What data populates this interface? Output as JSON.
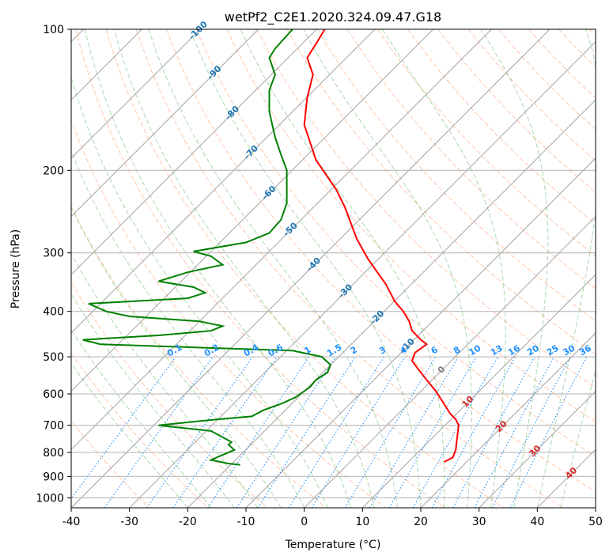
{
  "chart_data": {
    "type": "line",
    "title": "wetPf2_C2E1.2020.324.09.47.G18",
    "xlabel": "Temperature (°C)",
    "ylabel": "Pressure (hPa)",
    "xlim": [
      -40,
      50
    ],
    "ylim": [
      1050,
      100
    ],
    "y_scale": "log",
    "x_ticks": [
      -40,
      -30,
      -20,
      -10,
      0,
      10,
      20,
      30,
      40,
      50
    ],
    "y_ticks": [
      1000,
      900,
      800,
      700,
      600,
      500,
      400,
      300,
      200,
      100
    ],
    "grid": true,
    "series": [
      {
        "name": "",
        "role": "temperature",
        "color": "#ff0000",
        "points": [
          [
            24,
            838
          ],
          [
            25.5,
            820
          ],
          [
            26,
            790
          ],
          [
            26.2,
            750
          ],
          [
            26.5,
            700
          ],
          [
            26,
            680
          ],
          [
            25,
            660
          ],
          [
            24,
            630
          ],
          [
            22.5,
            590
          ],
          [
            21,
            560
          ],
          [
            19.5,
            530
          ],
          [
            18.5,
            510
          ],
          [
            19,
            490
          ],
          [
            21,
            470
          ],
          [
            20,
            460
          ],
          [
            18.5,
            440
          ],
          [
            18,
            420
          ],
          [
            17,
            400
          ],
          [
            15.5,
            380
          ],
          [
            14,
            350
          ],
          [
            11,
            310
          ],
          [
            9,
            280
          ],
          [
            7,
            240
          ],
          [
            5.5,
            220
          ],
          [
            2,
            190
          ],
          [
            0,
            160
          ],
          [
            0.5,
            140
          ],
          [
            1.5,
            125
          ],
          [
            0.5,
            115
          ],
          [
            2.5,
            105
          ],
          [
            3.5,
            100
          ]
        ]
      },
      {
        "name": "",
        "role": "dewpoint",
        "color": "#008000",
        "points": [
          [
            -11,
            850
          ],
          [
            -13,
            845
          ],
          [
            -16,
            830
          ],
          [
            -14,
            810
          ],
          [
            -12,
            790
          ],
          [
            -13,
            770
          ],
          [
            -12.5,
            760
          ],
          [
            -16,
            720
          ],
          [
            -25,
            700
          ],
          [
            -15,
            680
          ],
          [
            -9,
            670
          ],
          [
            -7,
            650
          ],
          [
            -4,
            630
          ],
          [
            -1.5,
            610
          ],
          [
            1,
            580
          ],
          [
            2,
            560
          ],
          [
            4,
            540
          ],
          [
            4.5,
            520
          ],
          [
            3,
            500
          ],
          [
            -2,
            485
          ],
          [
            -35,
            470
          ],
          [
            -38,
            460
          ],
          [
            -25,
            450
          ],
          [
            -16,
            440
          ],
          [
            -14,
            430
          ],
          [
            -18,
            420
          ],
          [
            -30,
            410
          ],
          [
            -34,
            400
          ],
          [
            -37,
            385
          ],
          [
            -20,
            375
          ],
          [
            -17,
            365
          ],
          [
            -19,
            355
          ],
          [
            -25,
            345
          ],
          [
            -20,
            330
          ],
          [
            -14,
            318
          ],
          [
            -16,
            305
          ],
          [
            -19,
            298
          ],
          [
            -10,
            285
          ],
          [
            -6,
            272
          ],
          [
            -4,
            255
          ],
          [
            -3,
            235
          ],
          [
            -3,
            215
          ],
          [
            -3,
            200
          ],
          [
            -4,
            185
          ],
          [
            -5,
            170
          ],
          [
            -6,
            150
          ],
          [
            -6,
            135
          ],
          [
            -5,
            125
          ],
          [
            -6,
            115
          ],
          [
            -5,
            110
          ],
          [
            -2,
            100
          ]
        ]
      }
    ],
    "isotherm_labels": [
      -100,
      -90,
      -80,
      -70,
      -60,
      -50,
      -40,
      -30,
      -20,
      -10,
      0,
      10,
      20,
      30,
      40
    ],
    "mixing_ratio_labels": [
      "0.1",
      "0.2",
      "0.4",
      "0.6",
      "1",
      "1.5",
      "2",
      "3",
      "4",
      "6",
      "8",
      "10",
      "13",
      "16",
      "20",
      "25",
      "30",
      "36"
    ],
    "colors": {
      "temperature": "#ff0000",
      "dewpoint": "#008000",
      "isotherm_cold_label": "#1f77b4",
      "isotherm_warm_label": "#d62728",
      "isotherm_zero_label": "#808080",
      "mixing_ratio": "#1e90ff",
      "dry_adiabat": "#ff9966",
      "moist_adiabat": "#2ca02c",
      "grid": "#b0b0b0"
    }
  }
}
